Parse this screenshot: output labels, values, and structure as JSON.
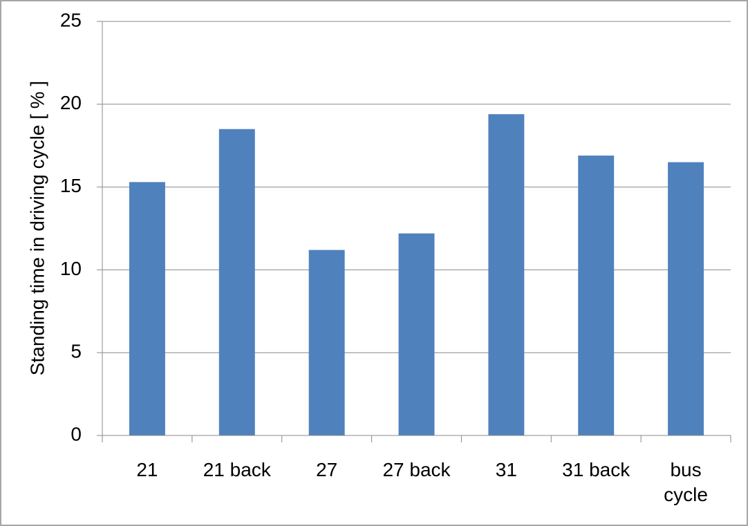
{
  "chart_data": {
    "type": "bar",
    "y_label": "Standing time in driving cycle [ % ]",
    "categories": [
      "21",
      "21 back",
      "27",
      "27 back",
      "31",
      "31 back",
      "bus cycle"
    ],
    "values": [
      15.3,
      18.5,
      11.2,
      12.2,
      19.4,
      16.9,
      16.5
    ],
    "color": "#4f81bd",
    "ylim": [
      0,
      25
    ],
    "yticks": [
      0,
      5,
      10,
      15,
      20,
      25
    ],
    "grid": true
  }
}
